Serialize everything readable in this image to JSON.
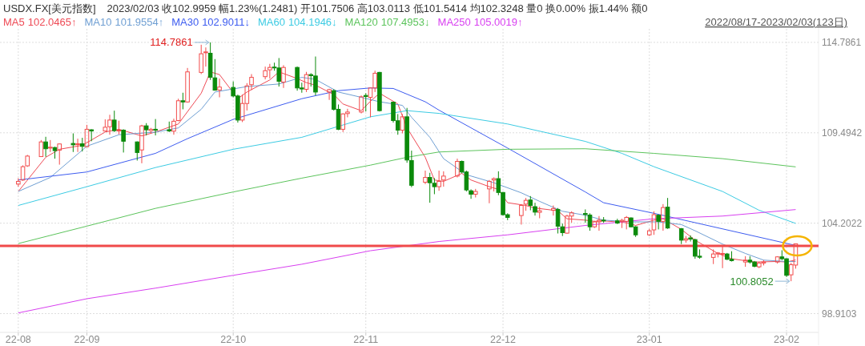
{
  "chart_data": {
    "type": "candlestick",
    "title": "USDX.FX[美元指数]",
    "subtitle": "2023/02/03 收102.9959 幅1.23%(1.2481) 开101.7506 高103.0113 低101.5414 均102.3248 量0 换0.00% 振1.44% 额0",
    "x": [
      "2022-08-17",
      "2022-08-18",
      "2022-08-19",
      "2022-08-22",
      "2022-08-23",
      "2022-08-24",
      "2022-08-25",
      "2022-08-26",
      "2022-08-29",
      "2022-08-30",
      "2022-08-31",
      "2022-09-01",
      "2022-09-02",
      "2022-09-05",
      "2022-09-06",
      "2022-09-07",
      "2022-09-08",
      "2022-09-09",
      "2022-09-12",
      "2022-09-13",
      "2022-09-14",
      "2022-09-15",
      "2022-09-16",
      "2022-09-19",
      "2022-09-20",
      "2022-09-21",
      "2022-09-22",
      "2022-09-23",
      "2022-09-26",
      "2022-09-27",
      "2022-09-28",
      "2022-09-29",
      "2022-09-30",
      "2022-10-03",
      "2022-10-04",
      "2022-10-05",
      "2022-10-06",
      "2022-10-07",
      "2022-10-10",
      "2022-10-11",
      "2022-10-12",
      "2022-10-13",
      "2022-10-14",
      "2022-10-17",
      "2022-10-18",
      "2022-10-19",
      "2022-10-20",
      "2022-10-21",
      "2022-10-24",
      "2022-10-25",
      "2022-10-26",
      "2022-10-27",
      "2022-10-28",
      "2022-10-31",
      "2022-11-01",
      "2022-11-02",
      "2022-11-03",
      "2022-11-04",
      "2022-11-07",
      "2022-11-08",
      "2022-11-09",
      "2022-11-10",
      "2022-11-11",
      "2022-11-14",
      "2022-11-15",
      "2022-11-16",
      "2022-11-17",
      "2022-11-18",
      "2022-11-21",
      "2022-11-22",
      "2022-11-23",
      "2022-11-24",
      "2022-11-25",
      "2022-11-28",
      "2022-11-29",
      "2022-11-30",
      "2022-12-01",
      "2022-12-02",
      "2022-12-05",
      "2022-12-06",
      "2022-12-07",
      "2022-12-08",
      "2022-12-09",
      "2022-12-12",
      "2022-12-13",
      "2022-12-14",
      "2022-12-15",
      "2022-12-16",
      "2022-12-19",
      "2022-12-20",
      "2022-12-21",
      "2022-12-22",
      "2022-12-23",
      "2022-12-26",
      "2022-12-27",
      "2022-12-28",
      "2022-12-29",
      "2022-12-30",
      "2023-01-02",
      "2023-01-03",
      "2023-01-04",
      "2023-01-05",
      "2023-01-06",
      "2023-01-09",
      "2023-01-10",
      "2023-01-11",
      "2023-01-12",
      "2023-01-13",
      "2023-01-16",
      "2023-01-17",
      "2023-01-18",
      "2023-01-19",
      "2023-01-20",
      "2023-01-23",
      "2023-01-24",
      "2023-01-25",
      "2023-01-26",
      "2023-01-27",
      "2023-01-30",
      "2023-01-31",
      "2023-02-01",
      "2023-02-02",
      "2023-02-03"
    ],
    "ohlc": [
      [
        106.49,
        106.84,
        106.34,
        106.65
      ],
      [
        106.73,
        107.59,
        106.68,
        107.51
      ],
      [
        107.56,
        108.2,
        107.5,
        108.13
      ],
      [
        108.1,
        109.07,
        108.1,
        108.96
      ],
      [
        108.96,
        109.26,
        108.09,
        108.56
      ],
      [
        108.6,
        109.07,
        108.37,
        108.65
      ],
      [
        108.63,
        108.68,
        107.98,
        108.45
      ],
      [
        108.48,
        108.87,
        107.63,
        108.84
      ],
      [
        108.87,
        109.46,
        108.37,
        108.79
      ],
      [
        108.8,
        109.15,
        108.37,
        108.85
      ],
      [
        108.85,
        109.2,
        108.4,
        108.7
      ],
      [
        108.68,
        109.96,
        108.65,
        109.7
      ],
      [
        109.67,
        109.7,
        109.0,
        109.6
      ],
      [
        109.6,
        110.28,
        109.6,
        109.82
      ],
      [
        109.85,
        110.55,
        109.38,
        110.24
      ],
      [
        110.24,
        110.79,
        109.54,
        109.62
      ],
      [
        109.6,
        110.2,
        109.4,
        109.65
      ],
      [
        109.65,
        109.7,
        108.34,
        109.0
      ],
      [
        108.96,
        108.99,
        107.87,
        108.34
      ],
      [
        108.49,
        109.96,
        107.71,
        109.9
      ],
      [
        109.9,
        110.06,
        109.34,
        109.67
      ],
      [
        109.62,
        109.78,
        109.46,
        109.7
      ],
      [
        109.7,
        110.3,
        109.34,
        109.65
      ],
      [
        109.67,
        110.15,
        109.54,
        109.6
      ],
      [
        109.59,
        110.32,
        109.38,
        110.17
      ],
      [
        110.21,
        111.49,
        110.17,
        111.37
      ],
      [
        111.37,
        111.84,
        110.87,
        111.3
      ],
      [
        111.3,
        113.29,
        111.26,
        113.06
      ],
      [
        113.03,
        114.65,
        112.93,
        114.12
      ],
      [
        114.18,
        114.49,
        113.37,
        114.23
      ],
      [
        114.15,
        114.7861,
        112.59,
        112.74
      ],
      [
        112.71,
        113.81,
        111.96,
        111.99
      ],
      [
        112.0,
        112.67,
        111.57,
        112.17
      ],
      [
        112.15,
        112.5,
        111.57,
        111.65
      ],
      [
        111.65,
        111.73,
        110.09,
        110.24
      ],
      [
        110.24,
        111.73,
        110.12,
        111.21
      ],
      [
        111.21,
        112.4,
        110.8,
        112.24
      ],
      [
        112.31,
        112.93,
        112.0,
        112.74
      ],
      [
        112.78,
        113.37,
        112.62,
        113.13
      ],
      [
        113.18,
        113.53,
        112.67,
        113.32
      ],
      [
        113.34,
        113.6,
        113.13,
        113.31
      ],
      [
        113.29,
        113.87,
        112.2,
        112.51
      ],
      [
        112.46,
        113.45,
        112.12,
        113.32
      ],
      [
        113.32,
        113.37,
        111.96,
        112.12
      ],
      [
        112.12,
        112.43,
        111.84,
        112.06
      ],
      [
        112.04,
        113.06,
        111.88,
        112.9
      ],
      [
        112.9,
        112.98,
        112.2,
        112.84
      ],
      [
        112.82,
        113.96,
        111.68,
        111.88
      ],
      [
        111.88,
        112.07,
        111.42,
        112.02
      ],
      [
        111.96,
        112.04,
        110.79,
        110.87
      ],
      [
        110.87,
        111.15,
        109.65,
        109.7
      ],
      [
        109.7,
        110.63,
        109.54,
        110.6
      ],
      [
        110.62,
        110.9,
        110.4,
        110.71
      ],
      [
        110.71,
        111.68,
        110.63,
        111.6
      ],
      [
        111.68,
        111.81,
        110.74,
        111.62
      ],
      [
        111.57,
        112.15,
        110.4,
        112.12
      ],
      [
        112.12,
        113.13,
        111.88,
        112.98
      ],
      [
        113.03,
        113.06,
        110.74,
        110.79
      ],
      [
        111.29,
        111.31,
        110.09,
        110.21
      ],
      [
        110.2,
        110.59,
        109.38,
        109.65
      ],
      [
        109.65,
        110.59,
        109.46,
        110.43
      ],
      [
        110.43,
        110.95,
        107.74,
        107.9
      ],
      [
        107.87,
        108.45,
        106.31,
        106.42
      ],
      [
        106.6,
        107.28,
        106.49,
        106.88
      ],
      [
        106.88,
        107.15,
        105.4,
        106.57
      ],
      [
        106.54,
        106.84,
        105.9,
        106.34
      ],
      [
        106.34,
        107.28,
        106.1,
        106.65
      ],
      [
        106.73,
        107.24,
        106.34,
        106.96
      ],
      [
        106.96,
        107.98,
        106.88,
        107.82
      ],
      [
        107.82,
        107.87,
        107.12,
        107.2
      ],
      [
        107.2,
        107.28,
        106.06,
        106.15
      ],
      [
        106.1,
        106.18,
        105.63,
        105.9
      ],
      [
        105.9,
        106.21,
        105.71,
        106.06
      ],
      [
        106.21,
        106.73,
        105.37,
        106.65
      ],
      [
        106.73,
        106.88,
        106.06,
        106.81
      ],
      [
        106.81,
        107.24,
        105.84,
        106.0
      ],
      [
        106.0,
        106.03,
        104.65,
        104.7
      ],
      [
        104.7,
        104.78,
        104.38,
        104.54
      ],
      [
        104.65,
        105.32,
        104.12,
        105.24
      ],
      [
        105.32,
        105.68,
        104.93,
        105.54
      ],
      [
        105.56,
        105.79,
        104.96,
        105.24
      ],
      [
        105.17,
        105.4,
        104.65,
        104.85
      ],
      [
        104.84,
        105.17,
        104.49,
        104.93
      ],
      [
        104.96,
        105.24,
        104.65,
        105.06
      ],
      [
        105.01,
        105.09,
        103.6,
        104.03
      ],
      [
        103.99,
        104.18,
        103.45,
        103.65
      ],
      [
        103.62,
        104.7,
        103.59,
        104.62
      ],
      [
        104.62,
        104.9,
        104.23,
        104.81
      ],
      [
        104.77,
        105.01,
        104.23,
        104.71
      ],
      [
        104.68,
        104.78,
        103.76,
        103.99
      ],
      [
        103.99,
        104.34,
        103.92,
        104.28
      ],
      [
        104.28,
        104.62,
        103.76,
        104.38
      ],
      [
        104.38,
        104.56,
        104.23,
        104.34
      ],
      [
        104.34,
        104.46,
        104.15,
        104.21
      ],
      [
        104.31,
        104.46,
        103.92,
        104.37
      ],
      [
        104.31,
        104.62,
        103.84,
        104.54
      ],
      [
        104.51,
        104.54,
        103.96,
        103.99
      ],
      [
        103.99,
        104.03,
        103.4,
        103.52
      ],
      [
        103.52,
        103.87,
        103.45,
        103.76
      ],
      [
        103.81,
        104.9,
        103.52,
        104.7
      ],
      [
        104.67,
        104.71,
        103.84,
        104.31
      ],
      [
        104.31,
        105.32,
        103.76,
        105.12
      ],
      [
        105.14,
        105.68,
        103.87,
        103.92
      ],
      [
        103.88,
        103.92,
        102.98,
        103.21
      ],
      [
        103.21,
        103.45,
        103.06,
        103.29
      ],
      [
        103.34,
        103.49,
        103.13,
        103.27
      ],
      [
        103.24,
        103.29,
        102.12,
        102.27
      ],
      [
        102.27,
        102.67,
        102.12,
        102.21
      ],
      [
        102.2,
        102.67,
        101.81,
        102.4
      ],
      [
        102.4,
        102.51,
        102.2,
        102.46
      ],
      [
        102.38,
        102.9,
        101.57,
        102.43
      ],
      [
        102.4,
        102.46,
        102.04,
        102.09
      ],
      [
        102.09,
        102.56,
        101.96,
        102.01
      ],
      [
        101.93,
        102.27,
        101.65,
        102.04
      ],
      [
        102.04,
        102.27,
        101.84,
        101.93
      ],
      [
        101.93,
        101.99,
        101.62,
        101.68
      ],
      [
        101.65,
        101.93,
        101.57,
        101.87
      ],
      [
        101.87,
        102.04,
        101.73,
        101.93
      ],
      [
        101.93,
        102.27,
        101.84,
        102.23
      ],
      [
        102.23,
        102.62,
        102.04,
        102.12
      ],
      [
        102.12,
        102.15,
        101.06,
        101.15
      ],
      [
        101.18,
        101.88,
        100.8052,
        101.77
      ],
      [
        101.7506,
        103.0113,
        101.5414,
        102.9959
      ]
    ],
    "series": [
      {
        "type": "line",
        "name": "MA5",
        "color": "#ee4a55",
        "x": [
          "2022-08-17",
          "2022-08-23",
          "2022-08-26",
          "2022-08-31",
          "2022-09-05",
          "2022-09-08",
          "2022-09-13",
          "2022-09-16",
          "2022-09-21",
          "2022-09-26",
          "2022-09-28",
          "2022-09-30",
          "2022-10-04",
          "2022-10-06",
          "2022-10-11",
          "2022-10-13",
          "2022-10-17",
          "2022-10-19",
          "2022-10-21",
          "2022-10-25",
          "2022-10-27",
          "2022-10-31",
          "2022-11-02",
          "2022-11-04",
          "2022-11-08",
          "2022-11-10",
          "2022-11-14",
          "2022-11-16",
          "2022-11-18",
          "2022-11-22",
          "2022-11-24",
          "2022-11-28",
          "2022-11-30",
          "2022-12-02",
          "2022-12-06",
          "2022-12-08",
          "2022-12-13",
          "2022-12-15",
          "2022-12-19",
          "2022-12-21",
          "2022-12-23",
          "2022-12-28",
          "2022-12-30",
          "2023-01-03",
          "2023-01-05",
          "2023-01-09",
          "2023-01-12",
          "2023-01-17",
          "2023-01-20",
          "2023-01-25",
          "2023-01-30",
          "2023-02-01",
          "2023-02-03"
        ],
        "values": [
          106.06,
          108.06,
          108.53,
          108.76,
          109.54,
          109.7,
          109.31,
          109.54,
          110.01,
          111.81,
          113.06,
          112.9,
          111.49,
          111.88,
          112.59,
          113.06,
          112.67,
          112.43,
          112.28,
          111.73,
          111.18,
          110.79,
          111.34,
          111.81,
          111.18,
          109.78,
          108.06,
          106.73,
          106.65,
          107.12,
          106.73,
          106.34,
          106.18,
          105.4,
          105.24,
          105.09,
          104.93,
          104.46,
          104.38,
          104.31,
          104.34,
          104.23,
          104.07,
          104.38,
          104.46,
          103.84,
          103.21,
          102.43,
          102.12,
          101.93,
          101.96,
          101.93,
          102.05
        ]
      },
      {
        "type": "line",
        "name": "MA10",
        "color": "#6f9fd3",
        "x": [
          "2022-08-17",
          "2022-08-24",
          "2022-09-01",
          "2022-09-08",
          "2022-09-16",
          "2022-09-21",
          "2022-09-26",
          "2022-09-29",
          "2022-10-06",
          "2022-10-13",
          "2022-10-18",
          "2022-10-21",
          "2022-10-26",
          "2022-10-31",
          "2022-11-04",
          "2022-11-09",
          "2022-11-11",
          "2022-11-15",
          "2022-11-18",
          "2022-11-23",
          "2022-11-29",
          "2022-12-05",
          "2022-12-09",
          "2022-12-14",
          "2022-12-19",
          "2022-12-23",
          "2022-12-29",
          "2023-01-04",
          "2023-01-09",
          "2023-01-12",
          "2023-01-18",
          "2023-01-23",
          "2023-01-27",
          "2023-02-01",
          "2023-02-03"
        ],
        "values": [
          106.06,
          106.88,
          108.71,
          109.38,
          109.53,
          109.78,
          110.87,
          111.88,
          112.2,
          112.35,
          112.74,
          112.62,
          111.88,
          111.57,
          111.31,
          111.1,
          110.4,
          109.23,
          107.98,
          107.04,
          106.57,
          105.98,
          105.48,
          104.9,
          104.67,
          104.38,
          104.28,
          104.28,
          104.12,
          103.76,
          102.98,
          102.43,
          102.04,
          101.96,
          101.96
        ]
      },
      {
        "type": "line",
        "name": "MA30",
        "color": "#3d5cf0",
        "x": [
          "2022-08-17",
          "2022-09-01",
          "2022-09-16",
          "2022-09-23",
          "2022-10-03",
          "2022-10-18",
          "2022-10-26",
          "2022-11-02",
          "2022-11-07",
          "2022-11-14",
          "2022-11-17",
          "2022-12-02",
          "2022-12-19",
          "2022-12-23",
          "2023-01-03",
          "2023-01-18",
          "2023-02-03"
        ],
        "values": [
          106.73,
          107.2,
          108.29,
          109.15,
          110.28,
          111.49,
          111.96,
          112.12,
          112.09,
          111.31,
          110.82,
          108.6,
          106.03,
          105.4,
          104.78,
          103.87,
          102.9
        ]
      },
      {
        "type": "line",
        "name": "MA60",
        "color": "#3ccbe3",
        "x": [
          "2022-08-17",
          "2022-09-01",
          "2022-09-16",
          "2022-10-03",
          "2022-10-18",
          "2022-11-02",
          "2022-11-10",
          "2022-11-17",
          "2022-12-02",
          "2022-12-19",
          "2022-12-27",
          "2023-01-03",
          "2023-01-18",
          "2023-01-26",
          "2023-02-03"
        ],
        "values": [
          105.24,
          106.34,
          107.46,
          108.53,
          109.23,
          110.43,
          110.79,
          110.63,
          110.01,
          108.99,
          108.29,
          107.51,
          106.06,
          104.96,
          104.19
        ]
      },
      {
        "type": "line",
        "name": "MA120",
        "color": "#5cc45c",
        "x": [
          "2022-08-17",
          "2022-09-01",
          "2022-09-16",
          "2022-10-03",
          "2022-10-18",
          "2022-11-02",
          "2022-11-10",
          "2022-11-17",
          "2022-12-02",
          "2022-12-19",
          "2023-01-03",
          "2023-01-18",
          "2023-02-03"
        ],
        "values": [
          103.01,
          104.03,
          105.07,
          106.03,
          106.84,
          107.6,
          108.06,
          108.37,
          108.53,
          108.56,
          108.29,
          107.98,
          107.5
        ]
      },
      {
        "type": "line",
        "name": "MA250",
        "color": "#d83ff0",
        "x": [
          "2022-08-17",
          "2022-09-01",
          "2022-09-16",
          "2022-10-03",
          "2022-10-18",
          "2022-11-02",
          "2022-11-17",
          "2022-12-02",
          "2022-12-19",
          "2023-01-03",
          "2023-01-18",
          "2023-02-03"
        ],
        "values": [
          98.95,
          99.78,
          100.4,
          101.15,
          101.8,
          102.59,
          103.13,
          103.52,
          104.07,
          104.46,
          104.62,
          105.0
        ]
      }
    ],
    "annotations": [
      "102.0465↑",
      "101.9554↑",
      "102.9011↓",
      "104.1946↓",
      "107.4953↓",
      "105.0019↑",
      "2022/08/17-2023/02/03(123日)",
      {
        "text": "114.7861",
        "x": "2022-09-28",
        "y": 114.7861
      },
      {
        "text": "100.8052",
        "x": "2023-02-02",
        "y": 100.8052
      }
    ],
    "ref_lines": [
      {
        "axis": "y",
        "value": 102.87,
        "color": "#f04a4a"
      }
    ],
    "xlim": [
      "2022-08-13",
      "2023-02-08"
    ],
    "ylim": [
      97.81,
      115.58
    ],
    "xticks": [
      {
        "value": "2022-08-17",
        "label": "22-08"
      },
      {
        "value": "2022-09-01",
        "label": "22-09"
      },
      {
        "value": "2022-10-03",
        "label": "22-10"
      },
      {
        "value": "2022-11-01",
        "label": "22-11"
      },
      {
        "value": "2022-12-01",
        "label": "22-12"
      },
      {
        "value": "2023-01-02",
        "label": "23-01"
      },
      {
        "value": "2023-02-01",
        "label": "23-02"
      }
    ],
    "yticks": [
      114.7861,
      109.4942,
      104.2022,
      98.9103
    ],
    "grid": true,
    "legend": "top left"
  }
}
